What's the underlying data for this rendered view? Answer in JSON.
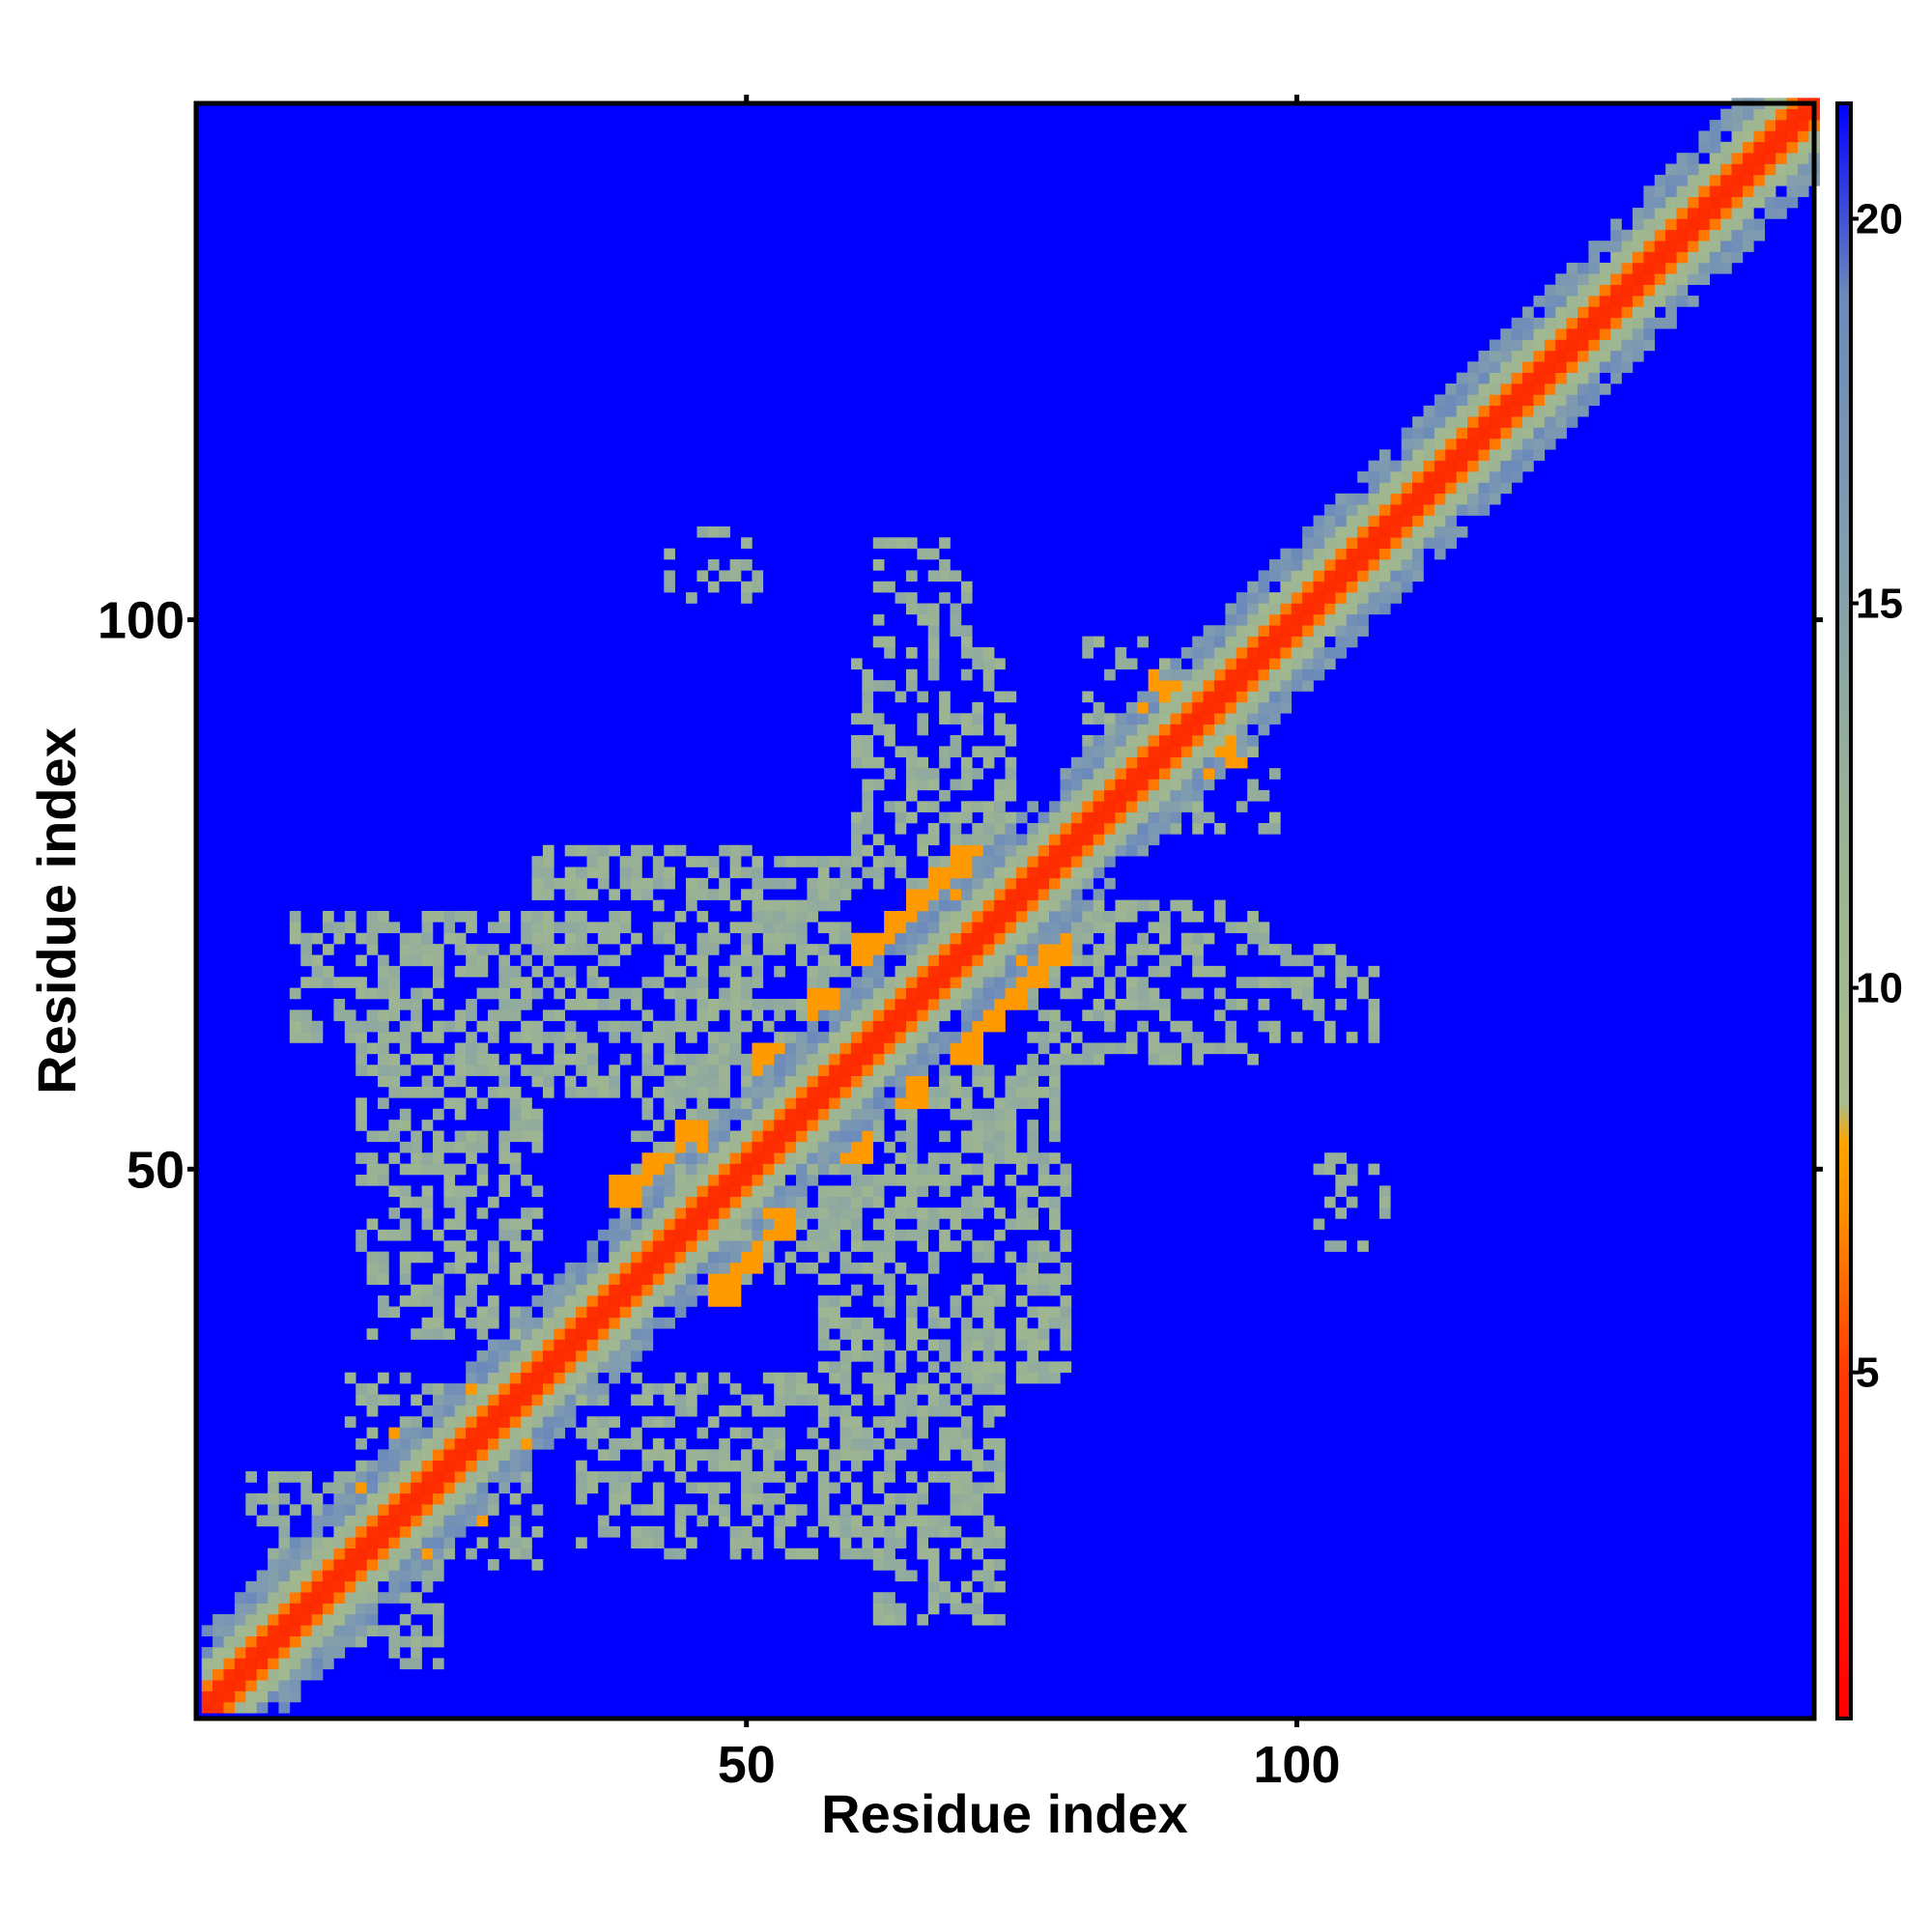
{
  "chart_data": {
    "type": "heatmap",
    "title": "",
    "xlabel": "Residue index",
    "ylabel": "Residue index",
    "xlim": [
      1,
      147
    ],
    "ylim": [
      1,
      147
    ],
    "x_ticks": [
      50,
      100
    ],
    "y_ticks": [
      50,
      100
    ],
    "colorbar": {
      "range": [
        0.5,
        21.5
      ],
      "ticks": [
        5,
        10,
        15,
        20
      ],
      "stops": [
        {
          "value": 0.5,
          "color": "#ff0000"
        },
        {
          "value": 5,
          "color": "#ff3a00"
        },
        {
          "value": 7,
          "color": "#ff8c00"
        },
        {
          "value": 8,
          "color": "#ffa500"
        },
        {
          "value": 8.5,
          "color": "#a7bc8c"
        },
        {
          "value": 12,
          "color": "#9bb394"
        },
        {
          "value": 16,
          "color": "#7f9bb0"
        },
        {
          "value": 19,
          "color": "#6b8aba"
        },
        {
          "value": 21.5,
          "color": "#0000ff"
        }
      ]
    },
    "background_value": 21,
    "background_color": "#0000ff",
    "diagonal": {
      "core_distance": 3.8,
      "near_distance": 6.5,
      "band_distance": 11,
      "halo_distance": 17
    },
    "orange_clusters": [
      [
        15,
        20
      ],
      [
        19,
        25
      ],
      [
        24,
        29
      ],
      [
        28,
        31
      ],
      [
        39,
        48
      ],
      [
        42,
        50
      ],
      [
        45,
        53
      ],
      [
        52,
        60
      ],
      [
        57,
        65
      ],
      [
        61,
        70
      ],
      [
        64,
        72
      ],
      [
        66,
        74
      ],
      [
        68,
        76
      ],
      [
        70,
        78
      ],
      [
        86,
        91
      ],
      [
        88,
        94
      ],
      [
        109,
        112
      ],
      [
        119,
        123
      ]
    ],
    "contact_regions": [
      [
        9,
        62,
        34,
        73,
        0.55
      ],
      [
        15,
        42,
        30,
        65,
        0.5
      ],
      [
        31,
        57,
        50,
        79,
        0.55
      ],
      [
        40,
        48,
        58,
        64,
        0.6
      ],
      [
        57,
        39,
        78,
        59,
        0.55
      ],
      [
        62,
        31,
        70,
        45,
        0.45
      ],
      [
        35,
        16,
        56,
        31,
        0.5
      ],
      [
        60,
        14,
        72,
        31,
        0.45
      ],
      [
        73,
        65,
        95,
        74,
        0.5
      ],
      [
        60,
        76,
        73,
        97,
        0.45
      ],
      [
        62,
        96,
        70,
        107,
        0.35
      ],
      [
        43,
        102,
        51,
        108,
        0.3
      ],
      [
        97,
        63,
        107,
        69,
        0.25
      ],
      [
        102,
        43,
        107,
        48,
        0.25
      ],
      [
        84,
        81,
        98,
        92,
        0.35
      ],
      [
        10,
        5,
        22,
        16,
        0.45
      ],
      [
        23,
        14,
        31,
        22,
        0.4
      ]
    ]
  }
}
